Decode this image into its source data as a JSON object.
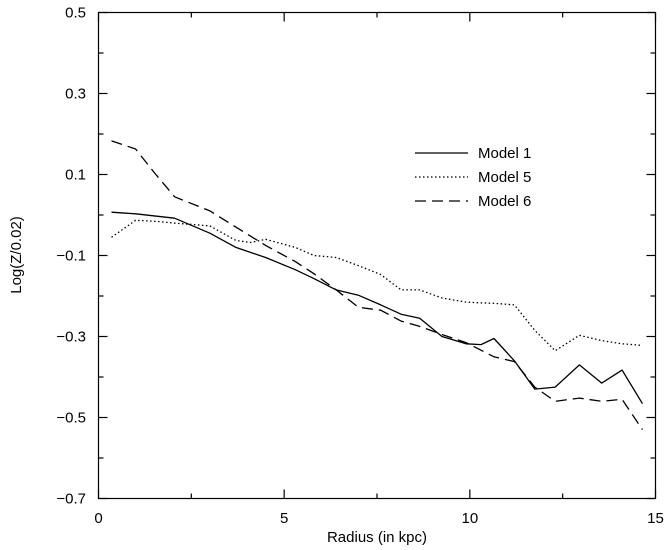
{
  "chart_data": {
    "type": "line",
    "title": "",
    "xlabel": "Radius (in kpc)",
    "ylabel": "Log(Z/0.02)",
    "xlim": [
      0,
      15
    ],
    "ylim": [
      -0.7,
      0.5
    ],
    "xticks": [
      0,
      5,
      10,
      15
    ],
    "xtick_labels": [
      "0",
      "5",
      "10",
      "15"
    ],
    "yticks": [
      -0.7,
      -0.5,
      -0.3,
      -0.1,
      0.1,
      0.3,
      0.5
    ],
    "ytick_labels": [
      "−0.7",
      "−0.5",
      "−0.3",
      "−0.1",
      "0.1",
      "0.3",
      "0.5"
    ],
    "grid": false,
    "legend_position": "upper-right",
    "series": [
      {
        "name": "Model 1",
        "style": "solid",
        "color": "#000000",
        "x": [
          0.35,
          1.0,
          2.05,
          3.0,
          3.7,
          4.5,
          5.3,
          5.8,
          6.4,
          7.0,
          7.6,
          8.15,
          8.65,
          9.25,
          9.9,
          10.3,
          10.65,
          11.2,
          11.75,
          12.3,
          12.95,
          13.55,
          14.1,
          14.65
        ],
        "y": [
          0.007,
          0.003,
          -0.008,
          -0.045,
          -0.08,
          -0.105,
          -0.135,
          -0.157,
          -0.185,
          -0.198,
          -0.222,
          -0.245,
          -0.255,
          -0.3,
          -0.318,
          -0.32,
          -0.305,
          -0.36,
          -0.43,
          -0.425,
          -0.37,
          -0.415,
          -0.383,
          -0.466
        ]
      },
      {
        "name": "Model 5",
        "style": "dotted",
        "color": "#000000",
        "x": [
          0.35,
          1.0,
          1.6,
          2.05,
          3.0,
          3.7,
          4.1,
          4.5,
          5.3,
          5.8,
          6.4,
          7.0,
          7.6,
          8.15,
          8.65,
          9.25,
          9.9,
          10.3,
          10.65,
          11.2,
          11.75,
          12.3,
          12.95,
          13.55,
          14.1,
          14.65
        ],
        "y": [
          -0.055,
          -0.013,
          -0.016,
          -0.02,
          -0.027,
          -0.063,
          -0.068,
          -0.06,
          -0.08,
          -0.1,
          -0.105,
          -0.125,
          -0.147,
          -0.185,
          -0.185,
          -0.205,
          -0.215,
          -0.217,
          -0.218,
          -0.222,
          -0.285,
          -0.335,
          -0.297,
          -0.31,
          -0.318,
          -0.322
        ]
      },
      {
        "name": "Model 6",
        "style": "dashed",
        "color": "#000000",
        "x": [
          0.35,
          1.0,
          1.5,
          2.05,
          3.0,
          3.7,
          4.5,
          5.3,
          5.8,
          6.4,
          7.0,
          7.6,
          8.15,
          8.65,
          9.25,
          9.9,
          10.65,
          11.2,
          11.75,
          12.3,
          12.95,
          13.55,
          14.1,
          14.65
        ],
        "y": [
          0.183,
          0.163,
          0.105,
          0.045,
          0.01,
          -0.03,
          -0.075,
          -0.115,
          -0.145,
          -0.185,
          -0.228,
          -0.235,
          -0.262,
          -0.275,
          -0.295,
          -0.315,
          -0.35,
          -0.362,
          -0.425,
          -0.46,
          -0.452,
          -0.46,
          -0.455,
          -0.53
        ]
      }
    ]
  }
}
